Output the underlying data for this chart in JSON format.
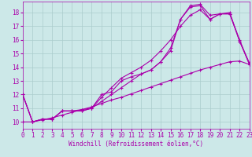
{
  "xlabel": "Windchill (Refroidissement éolien,°C)",
  "bg_color": "#cce8e8",
  "grid_color": "#aacccc",
  "line_color": "#aa00aa",
  "xlim": [
    0,
    23
  ],
  "ylim": [
    9.5,
    18.8
  ],
  "xticks": [
    0,
    1,
    2,
    3,
    4,
    5,
    6,
    7,
    8,
    9,
    10,
    11,
    12,
    13,
    14,
    15,
    16,
    17,
    18,
    19,
    20,
    21,
    22,
    23
  ],
  "yticks": [
    10,
    11,
    12,
    13,
    14,
    15,
    16,
    17,
    18
  ],
  "line1": {
    "x": [
      0,
      1,
      2,
      3,
      4,
      5,
      6,
      7,
      8,
      9,
      10,
      11,
      12,
      13,
      14,
      15,
      16,
      17,
      18,
      19,
      20,
      21,
      22,
      23
    ],
    "y": [
      12.0,
      10.0,
      10.2,
      10.2,
      10.8,
      10.8,
      10.8,
      11.0,
      11.5,
      12.0,
      12.5,
      13.0,
      13.5,
      13.8,
      14.4,
      15.4,
      17.5,
      18.4,
      18.5,
      17.5,
      17.9,
      17.9,
      15.9,
      14.2
    ]
  },
  "line2": {
    "x": [
      0,
      1,
      2,
      3,
      4,
      5,
      6,
      7,
      8,
      9,
      10,
      11,
      12,
      13,
      14,
      15,
      16,
      17,
      18,
      19,
      20,
      21,
      22,
      23
    ],
    "y": [
      12.0,
      10.0,
      10.2,
      10.2,
      10.8,
      10.8,
      10.9,
      11.0,
      12.0,
      12.2,
      13.0,
      13.3,
      13.5,
      13.8,
      14.4,
      15.2,
      17.5,
      18.5,
      18.6,
      17.8,
      17.9,
      18.0,
      15.9,
      14.3
    ]
  },
  "line3": {
    "x": [
      0,
      1,
      2,
      3,
      4,
      5,
      6,
      7,
      8,
      9,
      10,
      11,
      12,
      13,
      14,
      15,
      16,
      17,
      18,
      19,
      20,
      21,
      22,
      23
    ],
    "y": [
      12.0,
      10.0,
      10.2,
      10.2,
      10.8,
      10.8,
      10.8,
      11.0,
      11.8,
      12.5,
      13.2,
      13.6,
      14.0,
      14.5,
      15.2,
      16.0,
      17.0,
      17.8,
      18.2,
      17.5,
      17.9,
      17.9,
      16.0,
      14.2
    ]
  },
  "line4": {
    "x": [
      0,
      1,
      2,
      3,
      4,
      5,
      6,
      7,
      8,
      9,
      10,
      11,
      12,
      13,
      14,
      15,
      16,
      17,
      18,
      19,
      20,
      21,
      22,
      23
    ],
    "y": [
      10.0,
      10.0,
      10.15,
      10.3,
      10.5,
      10.7,
      10.9,
      11.1,
      11.35,
      11.6,
      11.8,
      12.05,
      12.3,
      12.55,
      12.8,
      13.05,
      13.3,
      13.55,
      13.8,
      14.0,
      14.2,
      14.4,
      14.45,
      14.2
    ]
  }
}
